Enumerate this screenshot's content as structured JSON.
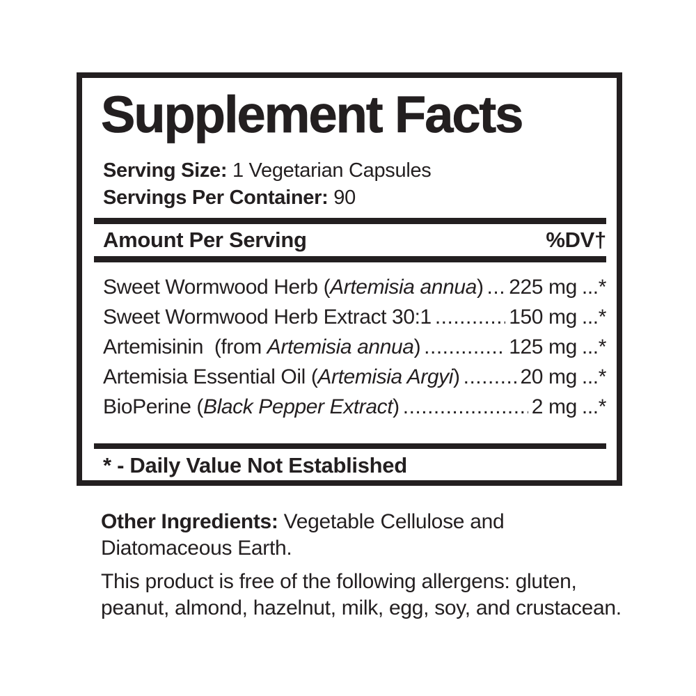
{
  "panel": {
    "title": "Supplement Facts",
    "serving": {
      "size_label": "Serving Size:",
      "size_value": " 1 Vegetarian Capsules",
      "per_container_label": "Servings Per Container:",
      "per_container_value": " 90"
    },
    "columns": {
      "amount_header": "Amount Per Serving",
      "dv_header": "%DV†"
    },
    "leader_dots": "..........................................................................................................",
    "ingredients": [
      {
        "pre": "Sweet Wormwood Herb (",
        "italic": "Artemisia annua",
        "post": ")",
        "amount": "225 mg",
        "dv": "...*"
      },
      {
        "pre": "Sweet Wormwood Herb Extract 30:1",
        "italic": "",
        "post": "",
        "amount": "150 mg",
        "dv": "...*"
      },
      {
        "pre": "Artemisinin  (from ",
        "italic": "Artemisia annua",
        "post": ")",
        "amount": "125 mg",
        "dv": "...*"
      },
      {
        "pre": "Artemisia Essential Oil (",
        "italic": "Artemisia Argyi",
        "post": ")",
        "amount": "20 mg",
        "dv": "...*"
      },
      {
        "pre": "BioPerine (",
        "italic": "Black Pepper Extract",
        "post": ")",
        "amount": "2 mg",
        "dv": "...*"
      }
    ],
    "footnote": "* - Daily Value Not Established"
  },
  "footer": {
    "other_ingredients": {
      "label": "Other Ingredients:",
      "line1_rest": " Vegetable Cellulose and",
      "line2": "Diatomaceous Earth."
    },
    "allergens": {
      "line1": "This product is free of the following allergens: gluten,",
      "line2": "peanut, almond, hazelnut, milk, egg, soy, and crustacean."
    }
  }
}
